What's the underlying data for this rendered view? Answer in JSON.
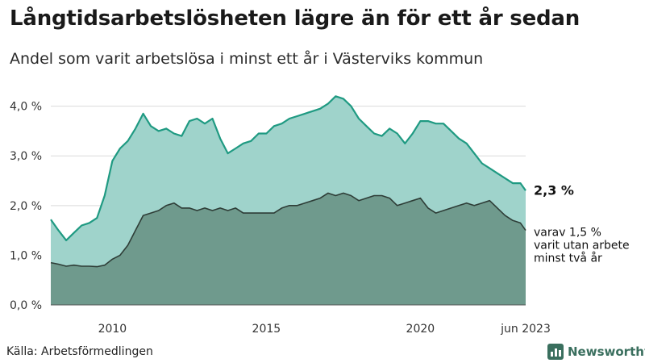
{
  "header": {
    "title": "Långtidsarbetslösheten lägre än för ett år sedan",
    "subtitle": "Andel som varit arbetslösa i minst ett år i Västerviks kommun"
  },
  "footer": {
    "source": "Källa: Arbetsförmedlingen",
    "logo_text": "Newsworthy",
    "logo_icon": "bar-chart-icon"
  },
  "colors": {
    "total_fill": "#9fd3cb",
    "total_line": "#1f9a82",
    "sub_fill": "#6f9a8d",
    "sub_line": "#2e3d37",
    "grid": "#d9d9d9",
    "brand": "#3a6f5e"
  },
  "chart_data": {
    "type": "area",
    "title": "Långtidsarbetslösheten lägre än för ett år sedan",
    "subtitle": "Andel som varit arbetslösa i minst ett år i Västerviks kommun",
    "ylim": [
      0,
      4.4
    ],
    "yticks": [
      0,
      1,
      2,
      3,
      4
    ],
    "ytick_labels": [
      "0,0 %",
      "1,0 %",
      "2,0 %",
      "3,0 %",
      "4,0 %"
    ],
    "xticks": [
      2010,
      2015,
      2020,
      2023.42
    ],
    "xtick_labels": [
      "2010",
      "2015",
      "2020",
      "jun 2023"
    ],
    "xlim": [
      2008.0,
      2023.42
    ],
    "grid": true,
    "series": [
      {
        "key": "total",
        "label": "2,3 %",
        "x": [
          2008.0,
          2008.25,
          2008.5,
          2008.75,
          2009.0,
          2009.25,
          2009.5,
          2009.75,
          2010.0,
          2010.25,
          2010.5,
          2010.75,
          2011.0,
          2011.25,
          2011.5,
          2011.75,
          2012.0,
          2012.25,
          2012.5,
          2012.75,
          2013.0,
          2013.25,
          2013.5,
          2013.75,
          2014.0,
          2014.25,
          2014.5,
          2014.75,
          2015.0,
          2015.25,
          2015.5,
          2015.75,
          2016.0,
          2016.25,
          2016.5,
          2016.75,
          2017.0,
          2017.25,
          2017.5,
          2017.75,
          2018.0,
          2018.25,
          2018.5,
          2018.75,
          2019.0,
          2019.25,
          2019.5,
          2019.75,
          2020.0,
          2020.25,
          2020.5,
          2020.75,
          2021.0,
          2021.25,
          2021.5,
          2021.75,
          2022.0,
          2022.25,
          2022.5,
          2022.75,
          2023.0,
          2023.25,
          2023.42
        ],
        "values": [
          1.72,
          1.5,
          1.3,
          1.45,
          1.6,
          1.65,
          1.75,
          2.2,
          2.9,
          3.15,
          3.3,
          3.55,
          3.85,
          3.6,
          3.5,
          3.55,
          3.45,
          3.4,
          3.7,
          3.75,
          3.65,
          3.75,
          3.35,
          3.05,
          3.15,
          3.25,
          3.3,
          3.45,
          3.45,
          3.6,
          3.65,
          3.75,
          3.8,
          3.85,
          3.9,
          3.95,
          4.05,
          4.2,
          4.15,
          4.0,
          3.75,
          3.6,
          3.45,
          3.4,
          3.55,
          3.45,
          3.25,
          3.45,
          3.7,
          3.7,
          3.65,
          3.65,
          3.5,
          3.35,
          3.25,
          3.05,
          2.85,
          2.75,
          2.65,
          2.55,
          2.45,
          2.45,
          2.3
        ]
      },
      {
        "key": "sub",
        "label": "varav 1,5 % varit utan arbete minst två år",
        "x": [
          2008.0,
          2008.25,
          2008.5,
          2008.75,
          2009.0,
          2009.25,
          2009.5,
          2009.75,
          2010.0,
          2010.25,
          2010.5,
          2010.75,
          2011.0,
          2011.25,
          2011.5,
          2011.75,
          2012.0,
          2012.25,
          2012.5,
          2012.75,
          2013.0,
          2013.25,
          2013.5,
          2013.75,
          2014.0,
          2014.25,
          2014.5,
          2014.75,
          2015.0,
          2015.25,
          2015.5,
          2015.75,
          2016.0,
          2016.25,
          2016.5,
          2016.75,
          2017.0,
          2017.25,
          2017.5,
          2017.75,
          2018.0,
          2018.25,
          2018.5,
          2018.75,
          2019.0,
          2019.25,
          2019.5,
          2019.75,
          2020.0,
          2020.25,
          2020.5,
          2020.75,
          2021.0,
          2021.25,
          2021.5,
          2021.75,
          2022.0,
          2022.25,
          2022.5,
          2022.75,
          2023.0,
          2023.25,
          2023.42
        ],
        "values": [
          0.85,
          0.82,
          0.78,
          0.8,
          0.78,
          0.78,
          0.77,
          0.8,
          0.92,
          1.0,
          1.2,
          1.5,
          1.8,
          1.85,
          1.9,
          2.0,
          2.05,
          1.95,
          1.95,
          1.9,
          1.95,
          1.9,
          1.95,
          1.9,
          1.95,
          1.85,
          1.85,
          1.85,
          1.85,
          1.85,
          1.95,
          2.0,
          2.0,
          2.05,
          2.1,
          2.15,
          2.25,
          2.2,
          2.25,
          2.2,
          2.1,
          2.15,
          2.2,
          2.2,
          2.15,
          2.0,
          2.05,
          2.1,
          2.15,
          1.95,
          1.85,
          1.9,
          1.95,
          2.0,
          2.05,
          2.0,
          2.05,
          2.1,
          1.95,
          1.8,
          1.7,
          1.65,
          1.5
        ]
      }
    ],
    "end_labels": {
      "total": "2,3 %",
      "sub_lines": [
        "varav 1,5 %",
        "varit utan arbete",
        "minst två år"
      ]
    }
  }
}
